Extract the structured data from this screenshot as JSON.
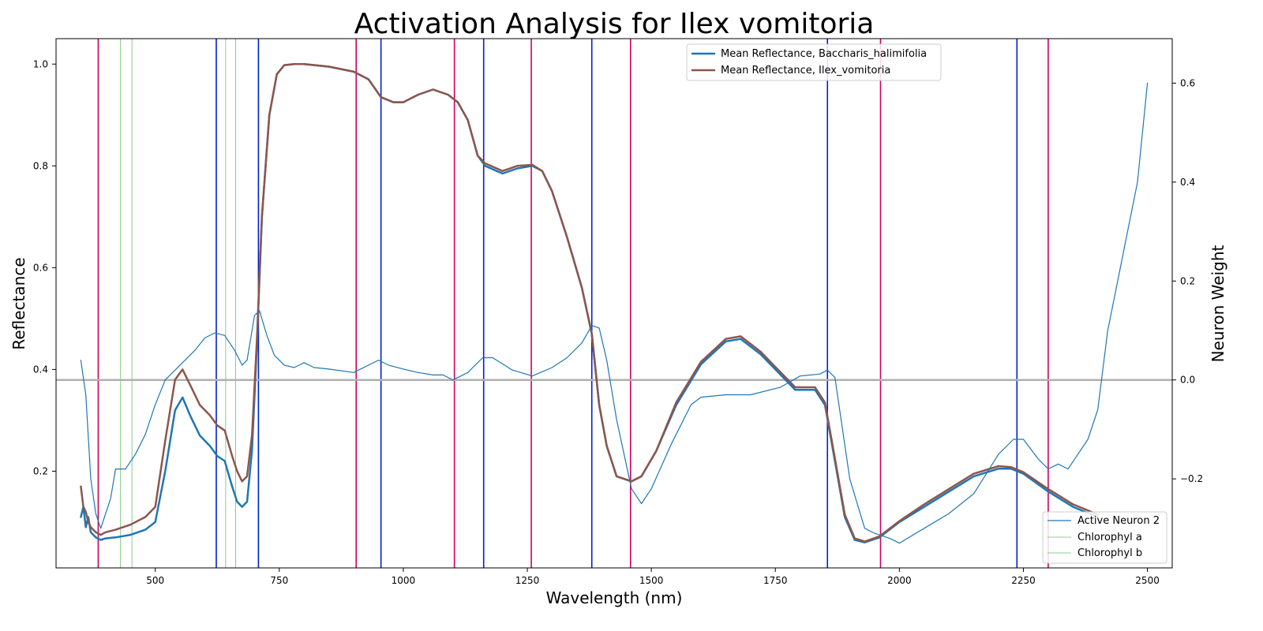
{
  "chart_data": {
    "type": "line",
    "title": "Activation Analysis for Ilex vomitoria",
    "xlabel": "Wavelength (nm)",
    "ylabel": "Reflectance",
    "y2label": "Neuron Weight",
    "xlim": [
      300,
      2550
    ],
    "ylim": [
      0.01,
      1.05
    ],
    "y2lim": [
      -0.38,
      0.69
    ],
    "xticks": [
      500,
      750,
      1000,
      1250,
      1500,
      1750,
      2000,
      2250,
      2500
    ],
    "yticks": [
      0.2,
      0.4,
      0.6,
      0.8,
      1.0
    ],
    "y2ticks": [
      -0.2,
      0.0,
      0.2,
      0.4,
      0.6
    ],
    "y2tick_labels": [
      "−0.2",
      "0.0",
      "0.2",
      "0.4",
      "0.6"
    ],
    "grid": false,
    "colors": {
      "baccharis": "#1f77b4",
      "ilex": "#8c564b",
      "neuron": "#1f77b4",
      "chlorophyll": "#2ca02c",
      "band_red": "#cc0066",
      "band_blue": "#0022cc",
      "zero_line": "#b0b0b0"
    },
    "legend_top": {
      "placement": "top-center",
      "entries": [
        {
          "label": "Mean Reflectance, Baccharis_halimifolia",
          "series": "baccharis"
        },
        {
          "label": "Mean Reflectance, Ilex_vomitoria",
          "series": "ilex"
        }
      ]
    },
    "legend_bottom": {
      "placement": "lower-right",
      "entries": [
        {
          "label": "Active Neuron 2",
          "series": "neuron"
        },
        {
          "label": "Chlorophyl a",
          "series": "chlorophyll"
        },
        {
          "label": "Chlorophyl b",
          "series": "chlorophyll"
        }
      ]
    },
    "chlorophyll_a_lines": [
      430,
      662
    ],
    "chlorophyll_b_lines": [
      453,
      642
    ],
    "red_bands": [
      385,
      905,
      1103,
      1258,
      1458,
      1962,
      2300
    ],
    "blue_bands": [
      623,
      708,
      955,
      1162,
      1380,
      1855,
      2237
    ],
    "series": [
      {
        "name": "Mean Reflectance, Baccharis_halimifolia",
        "key": "baccharis",
        "axis": "left",
        "x": [
          350,
          355,
          360,
          365,
          370,
          380,
          390,
          400,
          420,
          450,
          480,
          500,
          520,
          540,
          555,
          570,
          590,
          610,
          625,
          640,
          655,
          665,
          675,
          685,
          695,
          705,
          715,
          730,
          745,
          760,
          780,
          800,
          850,
          900,
          930,
          955,
          980,
          1000,
          1030,
          1060,
          1090,
          1110,
          1130,
          1150,
          1165,
          1200,
          1230,
          1260,
          1280,
          1300,
          1330,
          1360,
          1380,
          1395,
          1410,
          1430,
          1460,
          1480,
          1510,
          1550,
          1600,
          1650,
          1680,
          1720,
          1760,
          1790,
          1830,
          1850,
          1870,
          1890,
          1910,
          1930,
          1960,
          2000,
          2050,
          2100,
          2150,
          2200,
          2225,
          2250,
          2300,
          2350,
          2400
        ],
        "y": [
          0.11,
          0.13,
          0.09,
          0.11,
          0.08,
          0.07,
          0.065,
          0.068,
          0.07,
          0.075,
          0.085,
          0.1,
          0.2,
          0.32,
          0.345,
          0.31,
          0.27,
          0.25,
          0.23,
          0.22,
          0.17,
          0.14,
          0.13,
          0.14,
          0.24,
          0.45,
          0.7,
          0.9,
          0.98,
          0.998,
          1.0,
          1.0,
          0.995,
          0.985,
          0.97,
          0.935,
          0.925,
          0.925,
          0.94,
          0.95,
          0.94,
          0.925,
          0.89,
          0.82,
          0.8,
          0.785,
          0.795,
          0.8,
          0.79,
          0.75,
          0.66,
          0.56,
          0.47,
          0.33,
          0.25,
          0.19,
          0.18,
          0.19,
          0.24,
          0.33,
          0.41,
          0.455,
          0.46,
          0.43,
          0.39,
          0.36,
          0.36,
          0.33,
          0.22,
          0.11,
          0.065,
          0.06,
          0.07,
          0.1,
          0.13,
          0.16,
          0.19,
          0.205,
          0.205,
          0.195,
          0.16,
          0.13,
          0.11
        ]
      },
      {
        "name": "Mean Reflectance, Ilex_vomitoria",
        "key": "ilex",
        "axis": "left",
        "x": [
          350,
          355,
          360,
          365,
          370,
          380,
          390,
          400,
          420,
          450,
          480,
          500,
          520,
          540,
          555,
          570,
          590,
          610,
          625,
          640,
          655,
          665,
          675,
          685,
          695,
          705,
          715,
          730,
          745,
          760,
          780,
          800,
          850,
          900,
          930,
          955,
          980,
          1000,
          1030,
          1060,
          1090,
          1110,
          1130,
          1150,
          1165,
          1200,
          1230,
          1260,
          1280,
          1300,
          1330,
          1360,
          1380,
          1395,
          1410,
          1430,
          1460,
          1480,
          1510,
          1550,
          1600,
          1650,
          1680,
          1720,
          1760,
          1790,
          1830,
          1850,
          1870,
          1890,
          1910,
          1930,
          1960,
          2000,
          2050,
          2100,
          2150,
          2200,
          2225,
          2250,
          2300,
          2350,
          2400
        ],
        "y": [
          0.17,
          0.13,
          0.12,
          0.1,
          0.09,
          0.08,
          0.075,
          0.08,
          0.085,
          0.095,
          0.11,
          0.13,
          0.26,
          0.38,
          0.4,
          0.37,
          0.33,
          0.31,
          0.29,
          0.28,
          0.23,
          0.2,
          0.18,
          0.19,
          0.27,
          0.46,
          0.7,
          0.9,
          0.98,
          0.998,
          1.0,
          1.0,
          0.995,
          0.985,
          0.97,
          0.935,
          0.925,
          0.925,
          0.94,
          0.95,
          0.94,
          0.925,
          0.89,
          0.82,
          0.805,
          0.79,
          0.8,
          0.802,
          0.79,
          0.75,
          0.66,
          0.56,
          0.47,
          0.33,
          0.25,
          0.19,
          0.18,
          0.19,
          0.24,
          0.335,
          0.415,
          0.46,
          0.465,
          0.435,
          0.395,
          0.365,
          0.365,
          0.335,
          0.225,
          0.115,
          0.068,
          0.062,
          0.072,
          0.102,
          0.135,
          0.165,
          0.195,
          0.21,
          0.208,
          0.198,
          0.165,
          0.135,
          0.115
        ]
      },
      {
        "name": "Active Neuron 2",
        "key": "neuron",
        "axis": "right",
        "x": [
          350,
          360,
          370,
          380,
          390,
          410,
          420,
          440,
          460,
          480,
          500,
          520,
          550,
          580,
          600,
          620,
          640,
          660,
          675,
          685,
          700,
          710,
          725,
          740,
          760,
          780,
          800,
          820,
          850,
          900,
          950,
          970,
          1000,
          1030,
          1060,
          1080,
          1100,
          1130,
          1160,
          1180,
          1220,
          1260,
          1300,
          1330,
          1360,
          1380,
          1395,
          1410,
          1430,
          1460,
          1480,
          1500,
          1540,
          1580,
          1600,
          1650,
          1700,
          1760,
          1800,
          1840,
          1855,
          1870,
          1900,
          1930,
          1950,
          1980,
          2000,
          2050,
          2100,
          2150,
          2200,
          2230,
          2250,
          2280,
          2300,
          2320,
          2340,
          2360,
          2380,
          2400,
          2420,
          2440,
          2460,
          2480,
          2500
        ],
        "y": [
          0.04,
          -0.03,
          -0.2,
          -0.27,
          -0.3,
          -0.24,
          -0.18,
          -0.18,
          -0.15,
          -0.11,
          -0.05,
          0.0,
          0.03,
          0.06,
          0.085,
          0.095,
          0.09,
          0.06,
          0.03,
          0.04,
          0.13,
          0.14,
          0.09,
          0.05,
          0.03,
          0.025,
          0.035,
          0.025,
          0.022,
          0.015,
          0.04,
          0.03,
          0.022,
          0.015,
          0.01,
          0.01,
          0.0,
          0.015,
          0.045,
          0.045,
          0.02,
          0.008,
          0.025,
          0.045,
          0.075,
          0.11,
          0.105,
          0.04,
          -0.08,
          -0.22,
          -0.25,
          -0.22,
          -0.13,
          -0.05,
          -0.035,
          -0.03,
          -0.03,
          -0.015,
          0.008,
          0.012,
          0.02,
          0.005,
          -0.2,
          -0.3,
          -0.31,
          -0.32,
          -0.33,
          -0.3,
          -0.27,
          -0.23,
          -0.15,
          -0.12,
          -0.12,
          -0.16,
          -0.18,
          -0.17,
          -0.18,
          -0.15,
          -0.12,
          -0.06,
          0.1,
          0.2,
          0.3,
          0.4,
          0.6
        ]
      }
    ]
  }
}
